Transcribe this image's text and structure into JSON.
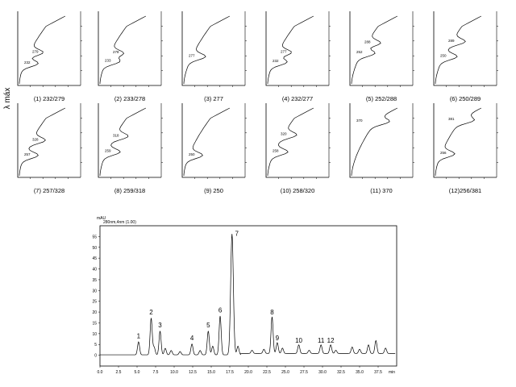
{
  "y_side_label": "λ máx",
  "panels": [
    {
      "caption": "(1) 232/279",
      "peaks": [
        [
          "232",
          0.3
        ],
        [
          "279",
          0.46
        ]
      ]
    },
    {
      "caption": "(2) 233/278",
      "peaks": [
        [
          "233",
          0.33
        ],
        [
          "278",
          0.45
        ]
      ]
    },
    {
      "caption": "(3) 277",
      "peaks": [
        [
          "277",
          0.4
        ]
      ]
    },
    {
      "caption": "(4) 232/277",
      "peaks": [
        [
          "232",
          0.32
        ],
        [
          "277",
          0.46
        ]
      ]
    },
    {
      "caption": "(5) 252/288",
      "peaks": [
        [
          "252",
          0.45
        ],
        [
          "288",
          0.6
        ]
      ]
    },
    {
      "caption": "(6) 250/289",
      "peaks": [
        [
          "250",
          0.4
        ],
        [
          "289",
          0.62
        ]
      ]
    },
    {
      "caption": "(7) 257/328",
      "peaks": [
        [
          "257",
          0.3
        ],
        [
          "328",
          0.52
        ]
      ]
    },
    {
      "caption": "(8) 259/318",
      "peaks": [
        [
          "259",
          0.35
        ],
        [
          "318",
          0.58
        ]
      ]
    },
    {
      "caption": "(9) 250",
      "peaks": [
        [
          "250",
          0.3
        ]
      ]
    },
    {
      "caption": "(10) 258/320",
      "peaks": [
        [
          "258",
          0.35
        ],
        [
          "320",
          0.6
        ]
      ]
    },
    {
      "caption": "(11) 370",
      "peaks": [
        [
          "370",
          0.8
        ]
      ]
    },
    {
      "caption": "(12)256/381",
      "peaks": [
        [
          "256",
          0.32
        ],
        [
          "381",
          0.82
        ]
      ]
    }
  ],
  "chart_data": {
    "type": "line",
    "ylabel": "mAU",
    "units_label": "280nm,4nm (1.00)",
    "xunit": "min",
    "xlim": [
      0.0,
      32.5
    ],
    "ylim": [
      -5,
      60
    ],
    "xticks": [
      "0.0",
      "2.5",
      "5.0",
      "7.5",
      "10.0",
      "12.5",
      "15.0",
      "17.5",
      "20.0",
      "22.5",
      "25.0",
      "27.5",
      "30.0",
      "32.5",
      "35.0",
      "37.5"
    ],
    "yticks": [
      "0",
      "5",
      "10",
      "15",
      "20",
      "25",
      "30",
      "35",
      "40",
      "45",
      "50",
      "55"
    ],
    "peaks": [
      {
        "label": "1",
        "x": 5.2,
        "y": 6
      },
      {
        "label": "2",
        "x": 6.9,
        "y": 17
      },
      {
        "label": "3",
        "x": 8.1,
        "y": 11
      },
      {
        "label": "4",
        "x": 12.4,
        "y": 5
      },
      {
        "label": "5",
        "x": 14.6,
        "y": 11
      },
      {
        "label": "6",
        "x": 16.2,
        "y": 18
      },
      {
        "label": "7",
        "x": 17.8,
        "y": 56
      },
      {
        "label": "8",
        "x": 23.2,
        "y": 17
      },
      {
        "label": "9",
        "x": 23.9,
        "y": 5
      },
      {
        "label": "10",
        "x": 26.8,
        "y": 4
      },
      {
        "label": "11",
        "x": 29.8,
        "y": 4
      },
      {
        "label": "12",
        "x": 31.1,
        "y": 4
      }
    ]
  }
}
